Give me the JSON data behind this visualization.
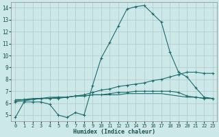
{
  "xlabel": "Humidex (Indice chaleur)",
  "bg_color": "#cce8e8",
  "grid_color": "#b0c8c8",
  "line_color": "#1a6b6b",
  "xlim": [
    -0.5,
    23.5
  ],
  "ylim": [
    4.5,
    14.5
  ],
  "xticks": [
    0,
    1,
    2,
    3,
    4,
    5,
    6,
    7,
    8,
    9,
    10,
    11,
    12,
    13,
    14,
    15,
    16,
    17,
    18,
    19,
    20,
    21,
    22,
    23
  ],
  "yticks": [
    5,
    6,
    7,
    8,
    9,
    10,
    11,
    12,
    13,
    14
  ],
  "curve1_x": [
    0,
    1,
    2,
    3,
    4,
    5,
    6,
    7,
    8,
    9,
    10,
    11,
    12,
    13,
    14,
    15,
    16,
    17,
    18,
    19,
    20,
    21,
    22,
    23
  ],
  "curve1_y": [
    4.8,
    6.1,
    6.1,
    6.1,
    5.9,
    5.0,
    4.8,
    5.2,
    5.0,
    7.5,
    9.8,
    11.1,
    12.5,
    13.9,
    14.1,
    14.2,
    13.5,
    12.8,
    10.3,
    8.6,
    8.2,
    7.3,
    6.5,
    6.4
  ],
  "curve2_x": [
    0,
    1,
    2,
    3,
    4,
    5,
    6,
    7,
    8,
    9,
    10,
    11,
    12,
    13,
    14,
    15,
    16,
    17,
    18,
    19,
    20,
    21,
    22,
    23
  ],
  "curve2_y": [
    6.1,
    6.2,
    6.3,
    6.4,
    6.4,
    6.4,
    6.5,
    6.6,
    6.7,
    6.9,
    7.1,
    7.2,
    7.4,
    7.5,
    7.6,
    7.7,
    7.9,
    8.0,
    8.2,
    8.4,
    8.6,
    8.6,
    8.5,
    8.5
  ],
  "curve3_x": [
    0,
    1,
    2,
    3,
    4,
    5,
    6,
    7,
    8,
    9,
    10,
    11,
    12,
    13,
    14,
    15,
    16,
    17,
    18,
    19,
    20,
    21,
    22,
    23
  ],
  "curve3_y": [
    6.2,
    6.3,
    6.3,
    6.4,
    6.4,
    6.5,
    6.5,
    6.6,
    6.6,
    6.7,
    6.7,
    6.8,
    6.9,
    6.9,
    7.0,
    7.0,
    7.0,
    7.0,
    7.0,
    6.9,
    6.6,
    6.5,
    6.4,
    6.4
  ],
  "curve4_x": [
    0,
    1,
    2,
    3,
    4,
    5,
    6,
    7,
    8,
    9,
    10,
    11,
    12,
    13,
    14,
    15,
    16,
    17,
    18,
    19,
    20,
    21,
    22,
    23
  ],
  "curve4_y": [
    6.3,
    6.3,
    6.4,
    6.4,
    6.5,
    6.5,
    6.5,
    6.6,
    6.6,
    6.7,
    6.7,
    6.7,
    6.7,
    6.8,
    6.8,
    6.8,
    6.8,
    6.8,
    6.7,
    6.6,
    6.5,
    6.5,
    6.4,
    6.4
  ]
}
